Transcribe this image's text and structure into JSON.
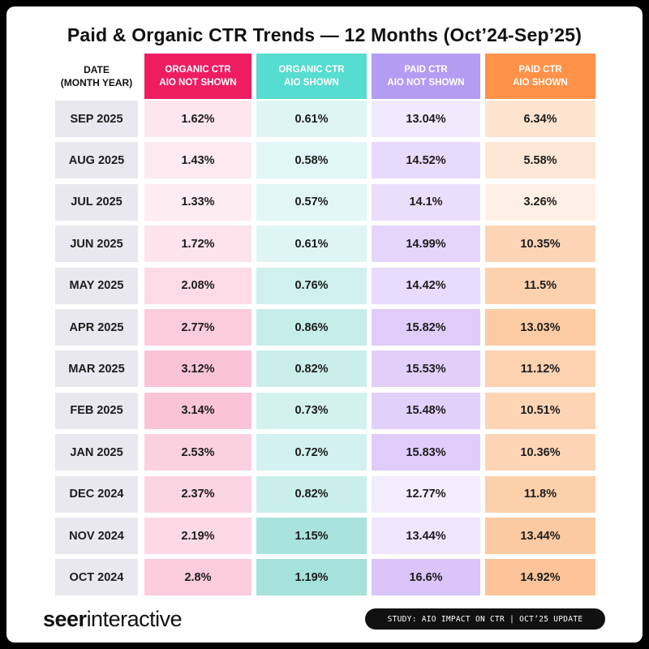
{
  "title": "Paid & Organic CTR Trends — 12 Months (Oct’24-Sep’25)",
  "chart_data": {
    "type": "table",
    "title": "Paid & Organic CTR Trends — 12 Months (Oct’24-Sep’25)",
    "columns": [
      {
        "line1": "DATE",
        "line2": "(MONTH YEAR)"
      },
      {
        "line1": "ORGANIC CTR",
        "line2": "AIO NOT SHOWN"
      },
      {
        "line1": "ORGANIC CTR",
        "line2": "AIO SHOWN"
      },
      {
        "line1": "PAID CTR",
        "line2": "AIO NOT SHOWN"
      },
      {
        "line1": "PAID CTR",
        "line2": "AIO SHOWN"
      }
    ],
    "header_colors": [
      "#ffffff",
      "#ee1d62",
      "#56dcd0",
      "#b39cf2",
      "#ff9248"
    ],
    "rows": [
      {
        "date": "SEP 2025",
        "values": [
          "1.62%",
          "0.61%",
          "13.04%",
          "6.34%"
        ]
      },
      {
        "date": "AUG 2025",
        "values": [
          "1.43%",
          "0.58%",
          "14.52%",
          "5.58%"
        ]
      },
      {
        "date": "JUL 2025",
        "values": [
          "1.33%",
          "0.57%",
          "14.1%",
          "3.26%"
        ]
      },
      {
        "date": "JUN 2025",
        "values": [
          "1.72%",
          "0.61%",
          "14.99%",
          "10.35%"
        ]
      },
      {
        "date": "MAY 2025",
        "values": [
          "2.08%",
          "0.76%",
          "14.42%",
          "11.5%"
        ]
      },
      {
        "date": "APR 2025",
        "values": [
          "2.77%",
          "0.86%",
          "15.82%",
          "13.03%"
        ]
      },
      {
        "date": "MAR 2025",
        "values": [
          "3.12%",
          "0.82%",
          "15.53%",
          "11.12%"
        ]
      },
      {
        "date": "FEB 2025",
        "values": [
          "3.14%",
          "0.73%",
          "15.48%",
          "10.51%"
        ]
      },
      {
        "date": "JAN 2025",
        "values": [
          "2.53%",
          "0.72%",
          "15.83%",
          "10.36%"
        ]
      },
      {
        "date": "DEC 2024",
        "values": [
          "2.37%",
          "0.82%",
          "12.77%",
          "11.8%"
        ]
      },
      {
        "date": "NOV 2024",
        "values": [
          "2.19%",
          "1.15%",
          "13.44%",
          "13.44%"
        ]
      },
      {
        "date": "OCT 2024",
        "values": [
          "2.8%",
          "1.19%",
          "16.6%",
          "14.92%"
        ]
      }
    ]
  },
  "footer": {
    "logo_bold": "seer",
    "logo_light": "interactive",
    "badge": "STUDY: AIO IMPACT ON CTR | OCT’25 UPDATE"
  }
}
